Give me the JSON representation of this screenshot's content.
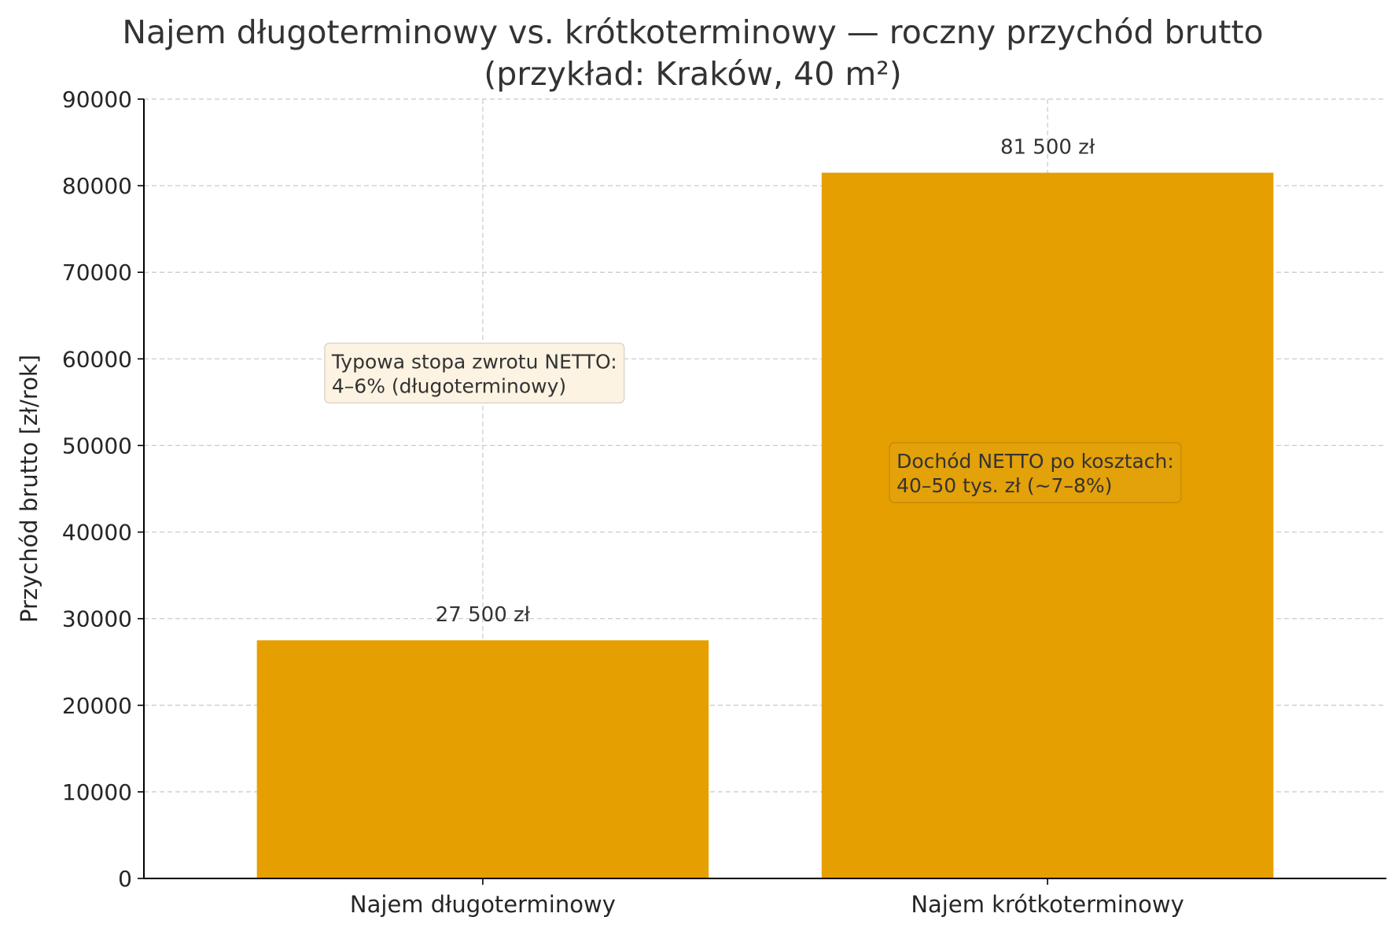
{
  "chart_data": {
    "type": "bar",
    "title": "Najem długoterminowy vs. krótkoterminowy — roczny przychód brutto",
    "subtitle": "(przykład: Kraków, 40 m²)",
    "xlabel": "",
    "ylabel": "Przychód brutto [zł/rok]",
    "categories": [
      "Najem długoterminowy",
      "Najem krótkoterminowy"
    ],
    "values": [
      27500,
      81500
    ],
    "value_labels": [
      "27 500 zł",
      "81 500 zł"
    ],
    "ylim": [
      0,
      90000
    ],
    "yticks": [
      0,
      10000,
      20000,
      30000,
      40000,
      50000,
      60000,
      70000,
      80000,
      90000
    ],
    "ytick_labels": [
      "0",
      "10000",
      "20000",
      "30000",
      "40000",
      "50000",
      "60000",
      "70000",
      "80000",
      "90000"
    ],
    "grid": true,
    "bar_color": "#E69F00",
    "annotations": [
      {
        "lines": [
          "Typowa stopa zwrotu NETTO:",
          "4–6% (długoterminowy)"
        ],
        "anchor_category": 0,
        "anchor_value": 61000,
        "background": "#FDF3E2"
      },
      {
        "lines": [
          "Dochód NETTO po kosztach:",
          "40–50 tys. zł (~7–8%)"
        ],
        "anchor_category": 1,
        "anchor_value": 49500,
        "background": "#E2A10B"
      }
    ]
  }
}
